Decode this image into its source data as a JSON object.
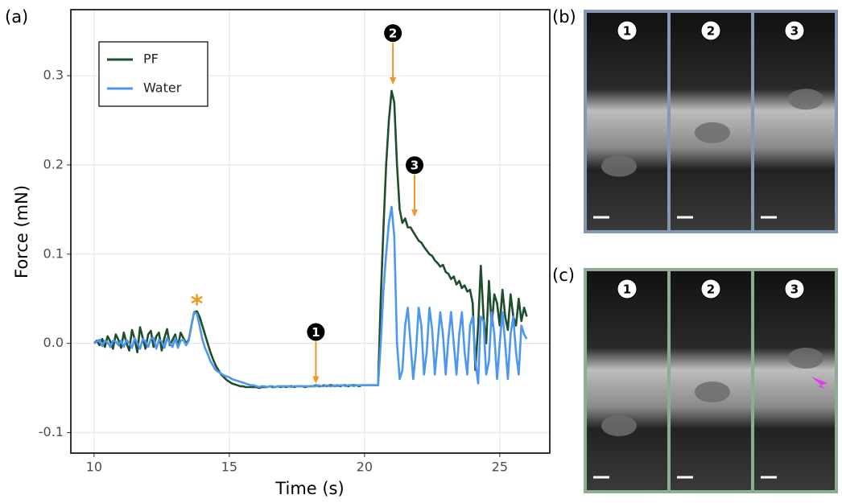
{
  "chart_data": {
    "type": "line",
    "panel_label": "(a)",
    "x_label": "Time (s)",
    "y_label": "Force (mN)",
    "xlim": [
      9.14,
      26.85
    ],
    "ylim": [
      -0.123,
      0.374
    ],
    "xticks": [
      10,
      15,
      20,
      25
    ],
    "yticks": [
      -0.1,
      {
        "value": 0,
        "label": "0.0"
      },
      0.1,
      0.2,
      0.3
    ],
    "grid": true,
    "legend": "top-left",
    "x": [
      10.0,
      10.1,
      10.2,
      10.3,
      10.4,
      10.5,
      10.6,
      10.7,
      10.8,
      10.9,
      11.0,
      11.1,
      11.2,
      11.3,
      11.4,
      11.5,
      11.6,
      11.7,
      11.8,
      11.9,
      12.0,
      12.1,
      12.2,
      12.3,
      12.4,
      12.5,
      12.6,
      12.7,
      12.8,
      12.9,
      13.0,
      13.1,
      13.2,
      13.3,
      13.4,
      13.5,
      13.6,
      13.7,
      13.8,
      13.9,
      14.0,
      14.1,
      14.2,
      14.3,
      14.4,
      14.5,
      14.6,
      14.7,
      14.8,
      14.9,
      15.0,
      15.1,
      15.2,
      15.3,
      15.4,
      15.5,
      15.6,
      15.7,
      15.8,
      15.9,
      16.0,
      16.1,
      16.2,
      16.3,
      16.4,
      16.5,
      16.6,
      16.7,
      16.8,
      16.9,
      17.0,
      17.1,
      17.2,
      17.3,
      17.4,
      17.5,
      17.6,
      17.7,
      17.8,
      17.9,
      18.0,
      18.1,
      18.2,
      18.3,
      18.4,
      18.5,
      18.6,
      18.7,
      18.8,
      18.9,
      19.0,
      19.1,
      19.2,
      19.3,
      19.4,
      19.5,
      19.6,
      19.7,
      19.8,
      19.9,
      20.0,
      20.1,
      20.2,
      20.3,
      20.4,
      20.5,
      20.6,
      20.7,
      20.8,
      20.9,
      21.0,
      21.1,
      21.2,
      21.3,
      21.4,
      21.5,
      21.6,
      21.7,
      21.8,
      21.9,
      22.0,
      22.1,
      22.2,
      22.3,
      22.4,
      22.5,
      22.6,
      22.7,
      22.8,
      22.9,
      23.0,
      23.1,
      23.2,
      23.3,
      23.4,
      23.5,
      23.6,
      23.7,
      23.8,
      23.9,
      24.0,
      24.1,
      24.2,
      24.3,
      24.4,
      24.5,
      24.6,
      24.7,
      24.8,
      24.9,
      25.0,
      25.1,
      25.2,
      25.3,
      25.4,
      25.5,
      25.6,
      25.7,
      25.8,
      25.9,
      26.0
    ],
    "series": [
      {
        "name": "PF",
        "color": "#1d4f2b",
        "values": [
          0.0,
          0.003,
          -0.002,
          0.005,
          -0.004,
          0.008,
          0.002,
          -0.006,
          0.01,
          0.004,
          -0.005,
          0.012,
          0.0,
          -0.008,
          0.015,
          0.005,
          -0.01,
          0.018,
          0.006,
          -0.006,
          0.01,
          0.014,
          -0.004,
          0.008,
          0.012,
          -0.008,
          0.006,
          0.016,
          -0.002,
          0.004,
          0.01,
          -0.004,
          0.012,
          0.006,
          0.0,
          0.004,
          0.02,
          0.035,
          0.036,
          0.03,
          0.02,
          0.01,
          0.0,
          -0.01,
          -0.018,
          -0.025,
          -0.03,
          -0.035,
          -0.038,
          -0.041,
          -0.043,
          -0.045,
          -0.046,
          -0.047,
          -0.048,
          -0.048,
          -0.049,
          -0.049,
          -0.049,
          -0.049,
          -0.049,
          -0.05,
          -0.049,
          -0.049,
          -0.049,
          -0.048,
          -0.049,
          -0.049,
          -0.048,
          -0.049,
          -0.048,
          -0.049,
          -0.048,
          -0.048,
          -0.049,
          -0.048,
          -0.048,
          -0.048,
          -0.049,
          -0.048,
          -0.048,
          -0.048,
          -0.047,
          -0.048,
          -0.048,
          -0.047,
          -0.048,
          -0.047,
          -0.047,
          -0.048,
          -0.047,
          -0.048,
          -0.047,
          -0.047,
          -0.048,
          -0.047,
          -0.047,
          -0.047,
          -0.048,
          -0.047,
          -0.047,
          -0.047,
          -0.047,
          -0.047,
          -0.047,
          -0.047,
          0.05,
          0.13,
          0.2,
          0.25,
          0.283,
          0.27,
          0.2,
          0.15,
          0.135,
          0.14,
          0.13,
          0.13,
          0.125,
          0.12,
          0.115,
          0.113,
          0.108,
          0.104,
          0.1,
          0.098,
          0.093,
          0.09,
          0.086,
          0.088,
          0.08,
          0.078,
          0.072,
          0.075,
          0.066,
          0.07,
          0.062,
          0.065,
          0.058,
          0.06,
          0.045,
          -0.03,
          0.02,
          0.087,
          0.03,
          0.0,
          0.07,
          0.02,
          0.055,
          0.045,
          0.02,
          0.06,
          0.03,
          0.015,
          0.055,
          0.03,
          0.02,
          0.05,
          0.025,
          0.04,
          0.03
        ]
      },
      {
        "name": "Water",
        "color": "#4d97ef",
        "values": [
          0.0,
          0.002,
          0.004,
          -0.003,
          0.003,
          0.001,
          -0.004,
          0.003,
          0.002,
          -0.002,
          0.003,
          -0.004,
          0.004,
          0.0,
          -0.005,
          0.006,
          0.0,
          -0.006,
          0.005,
          0.002,
          -0.004,
          0.005,
          0.006,
          -0.006,
          0.004,
          0.002,
          -0.005,
          0.006,
          0.0,
          -0.004,
          0.006,
          -0.005,
          0.003,
          0.004,
          -0.002,
          0.003,
          0.02,
          0.035,
          0.033,
          0.02,
          0.005,
          -0.005,
          -0.012,
          -0.02,
          -0.025,
          -0.03,
          -0.032,
          -0.034,
          -0.036,
          -0.037,
          -0.038,
          -0.04,
          -0.041,
          -0.042,
          -0.043,
          -0.044,
          -0.045,
          -0.046,
          -0.047,
          -0.047,
          -0.048,
          -0.049,
          -0.048,
          -0.048,
          -0.049,
          -0.048,
          -0.048,
          -0.049,
          -0.048,
          -0.048,
          -0.048,
          -0.048,
          -0.048,
          -0.049,
          -0.048,
          -0.048,
          -0.048,
          -0.048,
          -0.048,
          -0.048,
          -0.048,
          -0.048,
          -0.048,
          -0.047,
          -0.048,
          -0.048,
          -0.047,
          -0.048,
          -0.048,
          -0.047,
          -0.048,
          -0.047,
          -0.047,
          -0.048,
          -0.047,
          -0.047,
          -0.048,
          -0.047,
          -0.047,
          -0.047,
          -0.047,
          -0.047,
          -0.047,
          -0.047,
          -0.047,
          -0.047,
          0.0,
          0.06,
          0.1,
          0.135,
          0.153,
          0.12,
          0.0,
          -0.04,
          -0.03,
          0.02,
          0.04,
          0.0,
          -0.04,
          -0.01,
          0.04,
          0.02,
          -0.035,
          -0.01,
          0.04,
          0.015,
          -0.035,
          0.0,
          0.035,
          0.01,
          -0.035,
          0.005,
          0.035,
          0.0,
          -0.035,
          0.01,
          0.035,
          -0.01,
          -0.035,
          0.02,
          0.03,
          -0.02,
          -0.045,
          0.03,
          0.025,
          -0.035,
          -0.02,
          0.035,
          0.01,
          -0.04,
          0.0,
          0.035,
          0.0,
          -0.04,
          0.01,
          0.03,
          -0.01,
          -0.035,
          0.02,
          0.01,
          0.005
        ]
      }
    ],
    "annotations": [
      {
        "text": "*",
        "x": 13.8,
        "y": 0.048,
        "color": "#f0951f"
      },
      {
        "text": "1",
        "x": 18.2,
        "y": -0.045,
        "color": "#f0951f"
      },
      {
        "text": "2",
        "x": 21.05,
        "y": 0.29,
        "color": "#f0951f"
      },
      {
        "text": "3",
        "x": 21.85,
        "y": 0.142,
        "color": "#f0951f"
      }
    ]
  },
  "photo_panels": [
    {
      "label": "(b)",
      "frames": [
        "1",
        "2",
        "3"
      ],
      "border": "#8597b4"
    },
    {
      "label": "(c)",
      "frames": [
        "1",
        "2",
        "3"
      ],
      "border": "#8aad93"
    }
  ]
}
